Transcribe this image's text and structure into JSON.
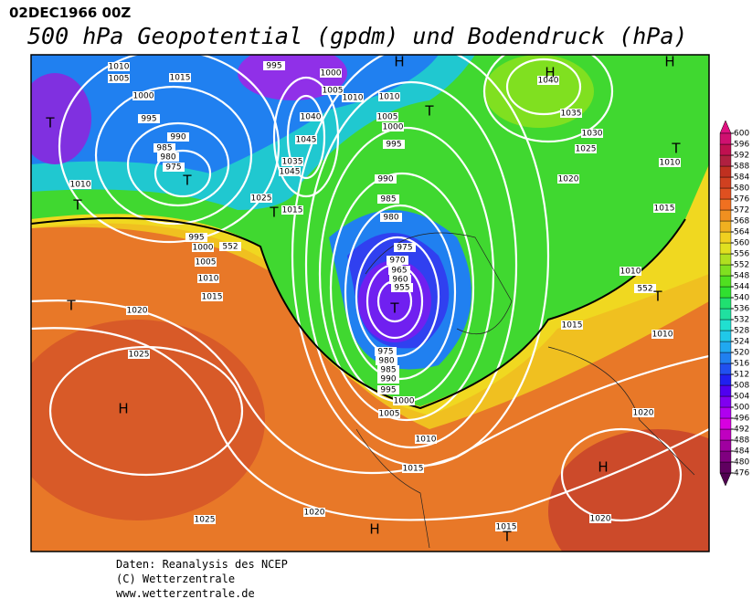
{
  "header": {
    "date": "02DEC1966 00Z",
    "title": "500 hPa Geopotential (gpdm) und Bodendruck (hPa)"
  },
  "footer": [
    "Daten: Reanalysis des NCEP",
    "(C) Wetterzentrale",
    "www.wetterzentrale.de"
  ],
  "colorbar": {
    "ticks": [
      476,
      480,
      484,
      488,
      492,
      496,
      500,
      504,
      508,
      512,
      516,
      520,
      524,
      528,
      532,
      536,
      540,
      544,
      548,
      552,
      556,
      560,
      564,
      568,
      572,
      576,
      580,
      584,
      588,
      592,
      596,
      600
    ],
    "colors": [
      "#600060",
      "#800080",
      "#a000a0",
      "#c000c0",
      "#d800e0",
      "#b000f0",
      "#8000f0",
      "#5000f0",
      "#2020f0",
      "#2050f0",
      "#2080f0",
      "#20a8f0",
      "#20c8e8",
      "#20e0d0",
      "#20e0a0",
      "#20e070",
      "#30e030",
      "#50e020",
      "#80e020",
      "#b0e020",
      "#e0e020",
      "#f0d020",
      "#f0b020",
      "#f09020",
      "#f07020",
      "#e05020",
      "#d04020",
      "#c03020",
      "#b02040",
      "#c01050",
      "#d01070"
    ]
  },
  "map": {
    "pressure_labels": [
      1010,
      1005,
      1015,
      1000,
      995,
      990,
      985,
      980,
      975,
      1010,
      995,
      1000,
      1005,
      1010,
      1015,
      1020,
      1025,
      1025,
      1020,
      1015,
      1010,
      1005,
      1000,
      995,
      990,
      985,
      980,
      975,
      955,
      960,
      965,
      970,
      975,
      980,
      985,
      990,
      995,
      1000,
      1005,
      1010,
      1000,
      995,
      1005,
      1010,
      1040,
      1045,
      1035,
      1045,
      1025,
      1015,
      1035,
      1040,
      1030,
      1025,
      1020,
      1010,
      1015,
      1010,
      1015,
      1010,
      1020,
      1020,
      1015,
      552,
      552
    ],
    "centers": [
      "T",
      "T",
      "T",
      "T",
      "H",
      "T",
      "H",
      "H",
      "T",
      "T",
      "T",
      "T",
      "H",
      "H",
      "H",
      "T"
    ]
  }
}
